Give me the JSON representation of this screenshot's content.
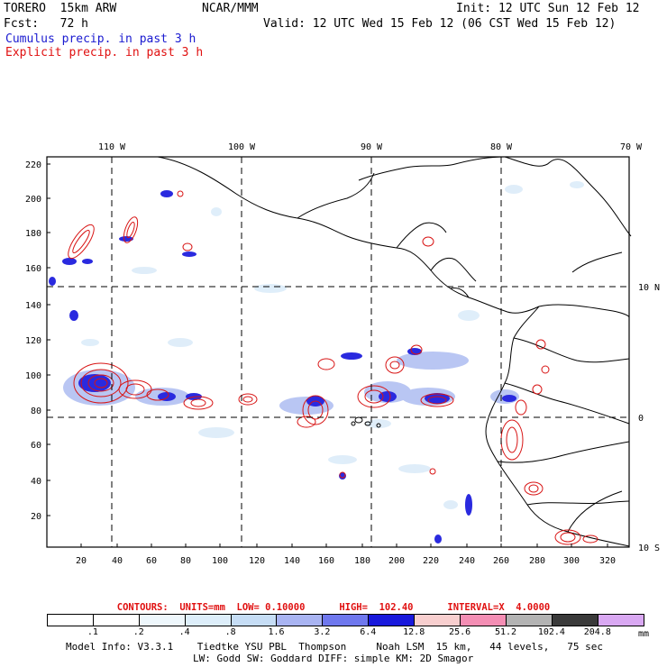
{
  "header": {
    "model": "TORERO  15km ARW",
    "org": "NCAR/MMM",
    "init": "Init: 12 UTC Sun 12 Feb 12",
    "fcst": "Fcst:   72 h",
    "valid": "Valid: 12 UTC Wed 15 Feb 12 (06 CST Wed 15 Feb 12)"
  },
  "legend": {
    "cumulus": "Cumulus precip. in past 3 h",
    "explicit": "Explicit precip. in past 3 h",
    "cumulus_color": "#1a1ad0",
    "explicit_color": "#e01010"
  },
  "map": {
    "top_lon_labels": [
      "110 W",
      "100 W",
      "90 W",
      "80 W",
      "70 W"
    ],
    "right_lat_labels": [
      "10 N",
      "0",
      "10 S"
    ],
    "y_grid_labels": [
      "220",
      "200",
      "180",
      "160",
      "140",
      "120",
      "100",
      "80",
      "60",
      "40",
      "20"
    ],
    "x_grid_labels": [
      "20",
      "40",
      "60",
      "80",
      "100",
      "120",
      "140",
      "160",
      "180",
      "200",
      "220",
      "240",
      "260",
      "280",
      "300",
      "320"
    ]
  },
  "contours_line": "CONTOURS:  UNITS=mm  LOW= 0.10000      HIGH=  102.40      INTERVAL=X  4.0000",
  "scale": {
    "labels": [
      ".1",
      ".2",
      ".4",
      ".8",
      "1.6",
      "3.2",
      "6.4",
      "12.8",
      "25.6",
      "51.2",
      "102.4",
      "204.8"
    ],
    "units": "mm",
    "colors": [
      "#ffffff",
      "#ffffff",
      "#eef7fc",
      "#ddeefa",
      "#c6ddf5",
      "#a9b4f2",
      "#6f78ee",
      "#1919dc",
      "#f8cfcf",
      "#f48eb4",
      "#b3b3b3",
      "#3a3a3a",
      "#d9a8f2"
    ]
  },
  "footer": {
    "line1": "Model Info: V3.3.1    Tiedtke YSU PBL  Thompson     Noah LSM  15 km,   44 levels,   75 sec",
    "line2": "LW: Godd SW: Goddard DIFF: simple KM: 2D Smagor"
  }
}
